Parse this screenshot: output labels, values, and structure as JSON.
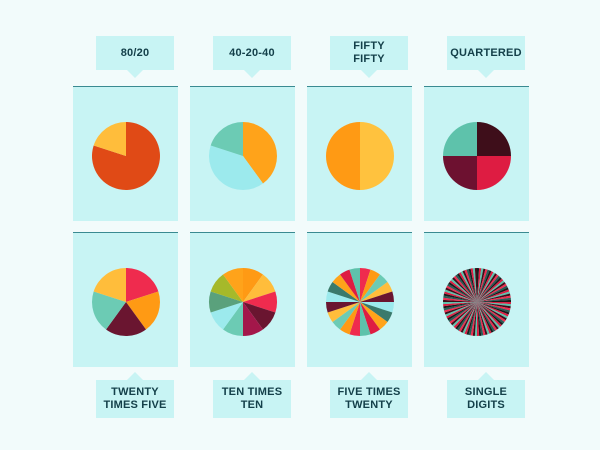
{
  "chart_data": [
    {
      "type": "pie",
      "title": "80/20",
      "values": [
        80,
        20
      ],
      "colors": [
        "#e04a16",
        "#ffbd3b"
      ]
    },
    {
      "type": "pie",
      "title": "40-20-40",
      "values": [
        40,
        40,
        20
      ],
      "colors": [
        "#ffa31a",
        "#9ceaed",
        "#6ccbb4"
      ]
    },
    {
      "type": "pie",
      "title": "FIFTY FIFTY",
      "values": [
        50,
        50
      ],
      "colors": [
        "#ffc23e",
        "#ff9a14"
      ]
    },
    {
      "type": "pie",
      "title": "QUARTERED",
      "values": [
        25,
        25,
        25,
        25
      ],
      "colors": [
        "#3e0e1a",
        "#de1c42",
        "#6d1130",
        "#5ec2ab"
      ]
    },
    {
      "type": "pie",
      "title": "TWENTY TIMES FIVE",
      "values": [
        20,
        20,
        20,
        20,
        20
      ],
      "colors": [
        "#ef2b4e",
        "#ff9a14",
        "#6a1530",
        "#6ccbb4",
        "#ffbd3b"
      ]
    },
    {
      "type": "pie",
      "title": "TEN TIMES TEN",
      "values": [
        10,
        10,
        10,
        10,
        10,
        10,
        10,
        10,
        10,
        10
      ],
      "colors": [
        "#ff9a14",
        "#ffbd3b",
        "#ef2b4e",
        "#6a1530",
        "#a3174a",
        "#6ccbb4",
        "#9ceaed",
        "#5aa17c",
        "#a6b92a",
        "#ffa31a"
      ]
    },
    {
      "type": "pie",
      "title": "FIVE TIMES TWENTY",
      "values": [
        5,
        5,
        5,
        5,
        5,
        5,
        5,
        5,
        5,
        5,
        5,
        5,
        5,
        5,
        5,
        5,
        5,
        5,
        5,
        5
      ],
      "colors": [
        "#ef2b4e",
        "#ff9a14",
        "#6ccbb4",
        "#ffbd3b",
        "#6a1530",
        "#9ceaed",
        "#3a7a6c",
        "#ffa31a",
        "#de1c42",
        "#5ec2ab"
      ]
    },
    {
      "type": "pie",
      "title": "SINGLE DIGITS",
      "values": [
        1,
        1,
        1,
        1,
        1,
        1,
        1,
        1,
        1,
        1,
        1,
        1,
        1,
        1,
        1,
        1,
        1,
        1,
        1,
        1,
        1,
        1,
        1,
        1,
        1,
        1,
        1,
        1,
        1,
        1,
        1,
        1,
        1,
        1,
        1,
        1,
        1,
        1,
        1,
        1,
        1,
        1,
        1,
        1,
        1,
        1,
        1,
        1,
        1,
        1,
        1,
        1,
        1,
        1,
        1,
        1,
        1,
        1,
        1,
        1,
        1,
        1,
        1,
        1,
        1,
        1,
        1,
        1,
        1,
        1,
        1,
        1,
        1,
        1,
        1,
        1,
        1,
        1,
        1,
        1,
        1,
        1,
        1,
        1,
        1,
        1,
        1,
        1,
        1,
        1,
        1,
        1,
        1,
        1,
        1,
        1,
        1,
        1,
        1,
        1
      ],
      "colors": [
        "#1a1a1a",
        "#de1c42",
        "#5ec2ab",
        "#3e0e1a",
        "#ef2b4e",
        "#2a5a55"
      ]
    }
  ],
  "labels": {
    "top": [
      "80/20",
      "40-20-40",
      "FIFTY\nFIFTY",
      "QUARTERED"
    ],
    "bottom": [
      "TWENTY\nTIMES FIVE",
      "TEN TIMES\nTEN",
      "FIVE TIMES\nTWENTY",
      "SINGLE\nDIGITS"
    ]
  }
}
